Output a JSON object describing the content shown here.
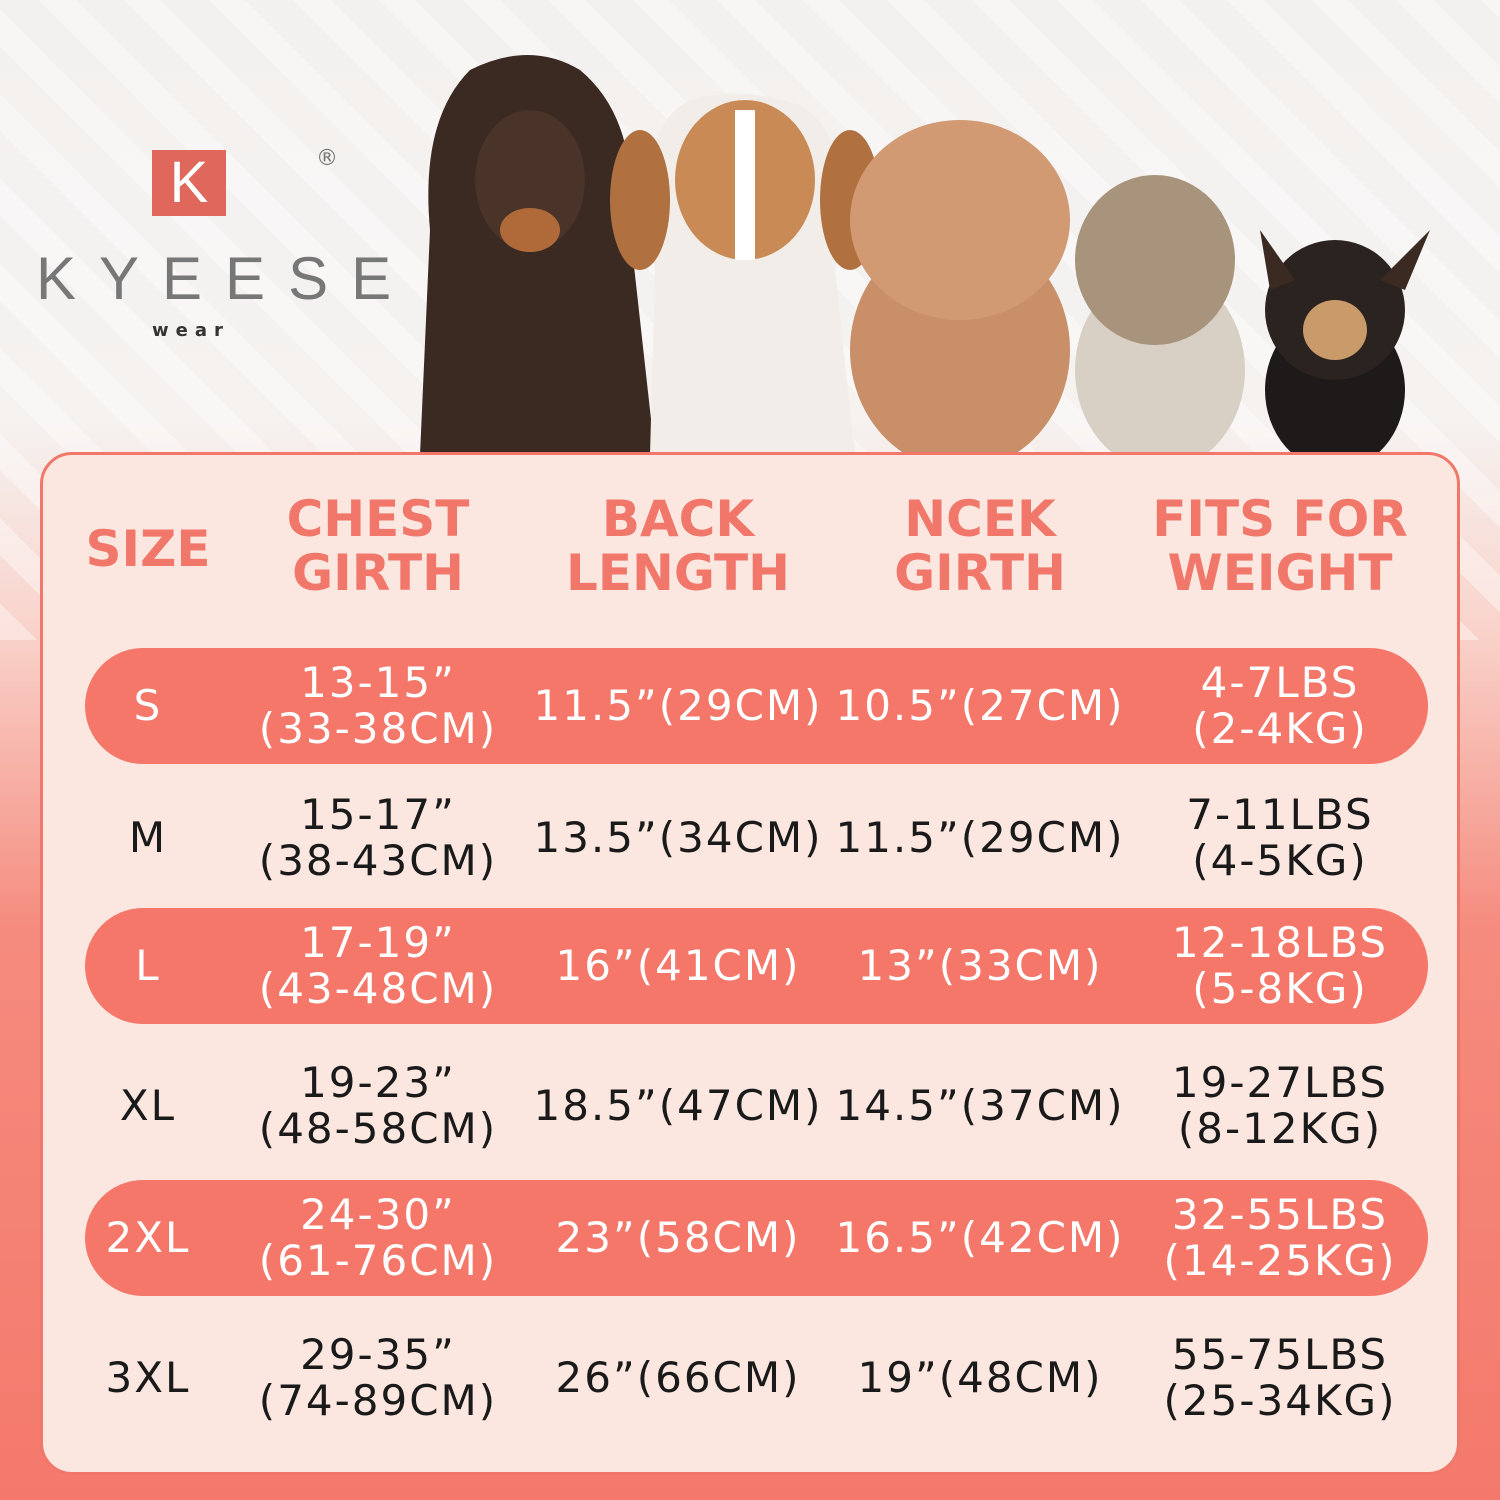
{
  "brand": {
    "logo_letter": "K",
    "name": "KYEESE",
    "tagline": "wear",
    "registered": "®"
  },
  "colors": {
    "accent": "#f4776a",
    "panel": "#fbe7df",
    "header_text": "#f0776a"
  },
  "headers": [
    "SIZE",
    "CHEST\nGIRTH",
    "BACK\nLENGTH",
    "NCEK\nGIRTH",
    "FITS FOR\nWEIGHT"
  ],
  "header_lines": [
    [
      "SIZE"
    ],
    [
      "CHEST",
      "GIRTH"
    ],
    [
      "BACK",
      "LENGTH"
    ],
    [
      "NCEK",
      "GIRTH"
    ],
    [
      "FITS FOR",
      "WEIGHT"
    ]
  ],
  "rows": [
    {
      "size": "S",
      "chest": [
        "13-15”",
        "(33-38CM)"
      ],
      "back": "11.5”(29CM)",
      "neck": "10.5”(27CM)",
      "weight": [
        "4-7LBS",
        "(2-4KG)"
      ],
      "highlight": true
    },
    {
      "size": "M",
      "chest": [
        "15-17”",
        "(38-43CM)"
      ],
      "back": "13.5”(34CM)",
      "neck": "11.5”(29CM)",
      "weight": [
        "7-11LBS",
        "(4-5KG)"
      ],
      "highlight": false
    },
    {
      "size": "L",
      "chest": [
        "17-19”",
        "(43-48CM)"
      ],
      "back": "16”(41CM)",
      "neck": "13”(33CM)",
      "weight": [
        "12-18LBS",
        "(5-8KG)"
      ],
      "highlight": true
    },
    {
      "size": "XL",
      "chest": [
        "19-23”",
        "(48-58CM)"
      ],
      "back": "18.5”(47CM)",
      "neck": "14.5”(37CM)",
      "weight": [
        "19-27LBS",
        "(8-12KG)"
      ],
      "highlight": false
    },
    {
      "size": "2XL",
      "chest": [
        "24-30”",
        "(61-76CM)"
      ],
      "back": "23”(58CM)",
      "neck": "16.5”(42CM)",
      "weight": [
        "32-55LBS",
        "(14-25KG)"
      ],
      "highlight": true
    },
    {
      "size": "3XL",
      "chest": [
        "29-35”",
        "(74-89CM)"
      ],
      "back": "26”(66CM)",
      "neck": "19”(48CM)",
      "weight": [
        "55-75LBS",
        "(25-34KG)"
      ],
      "highlight": false
    }
  ],
  "dogs": [
    "doberman",
    "beagle",
    "poodle",
    "terrier",
    "chihuahua"
  ]
}
